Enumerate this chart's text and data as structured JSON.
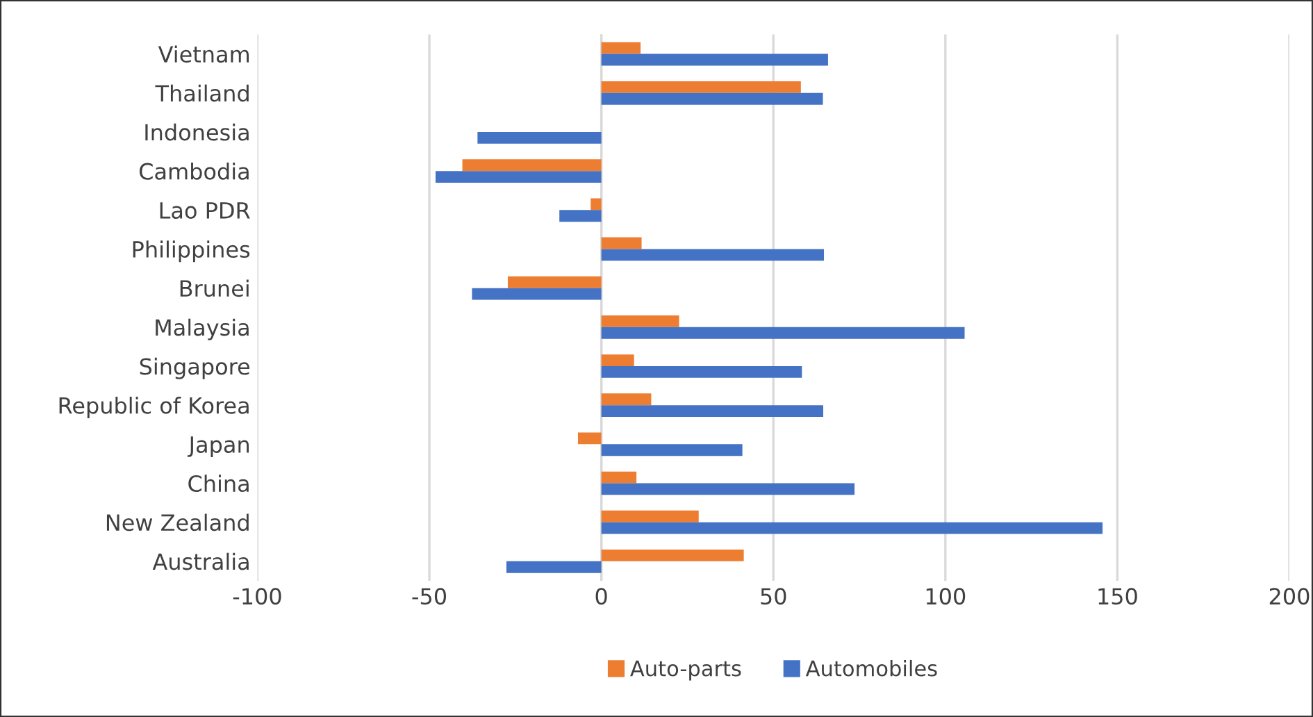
{
  "chart_data": {
    "type": "bar",
    "orientation": "horizontal",
    "categories": [
      "Vietnam",
      "Thailand",
      "Indonesia",
      "Cambodia",
      "Lao PDR",
      "Philippines",
      "Brunei",
      "Malaysia",
      "Singapore",
      "Republic of Korea",
      "Japan",
      "China",
      "New Zealand",
      "Australia"
    ],
    "series": [
      {
        "name": "Auto-parts",
        "color": "#ed7d31",
        "values": [
          11.4,
          58.0,
          null,
          -40.4,
          -3.1,
          11.7,
          -27.2,
          22.6,
          9.5,
          14.5,
          -6.8,
          10.2,
          28.3,
          41.4
        ]
      },
      {
        "name": "Automobiles",
        "color": "#4472c4",
        "values": [
          65.9,
          64.4,
          -36.0,
          -48.2,
          -12.2,
          64.7,
          -37.6,
          105.6,
          58.3,
          64.5,
          41.0,
          73.6,
          145.7,
          -27.6
        ]
      }
    ],
    "xlim": [
      -100,
      200
    ],
    "xticks": [
      -100,
      -50,
      0,
      50,
      100,
      150,
      200
    ],
    "grid": "x",
    "legend": "bottom"
  }
}
